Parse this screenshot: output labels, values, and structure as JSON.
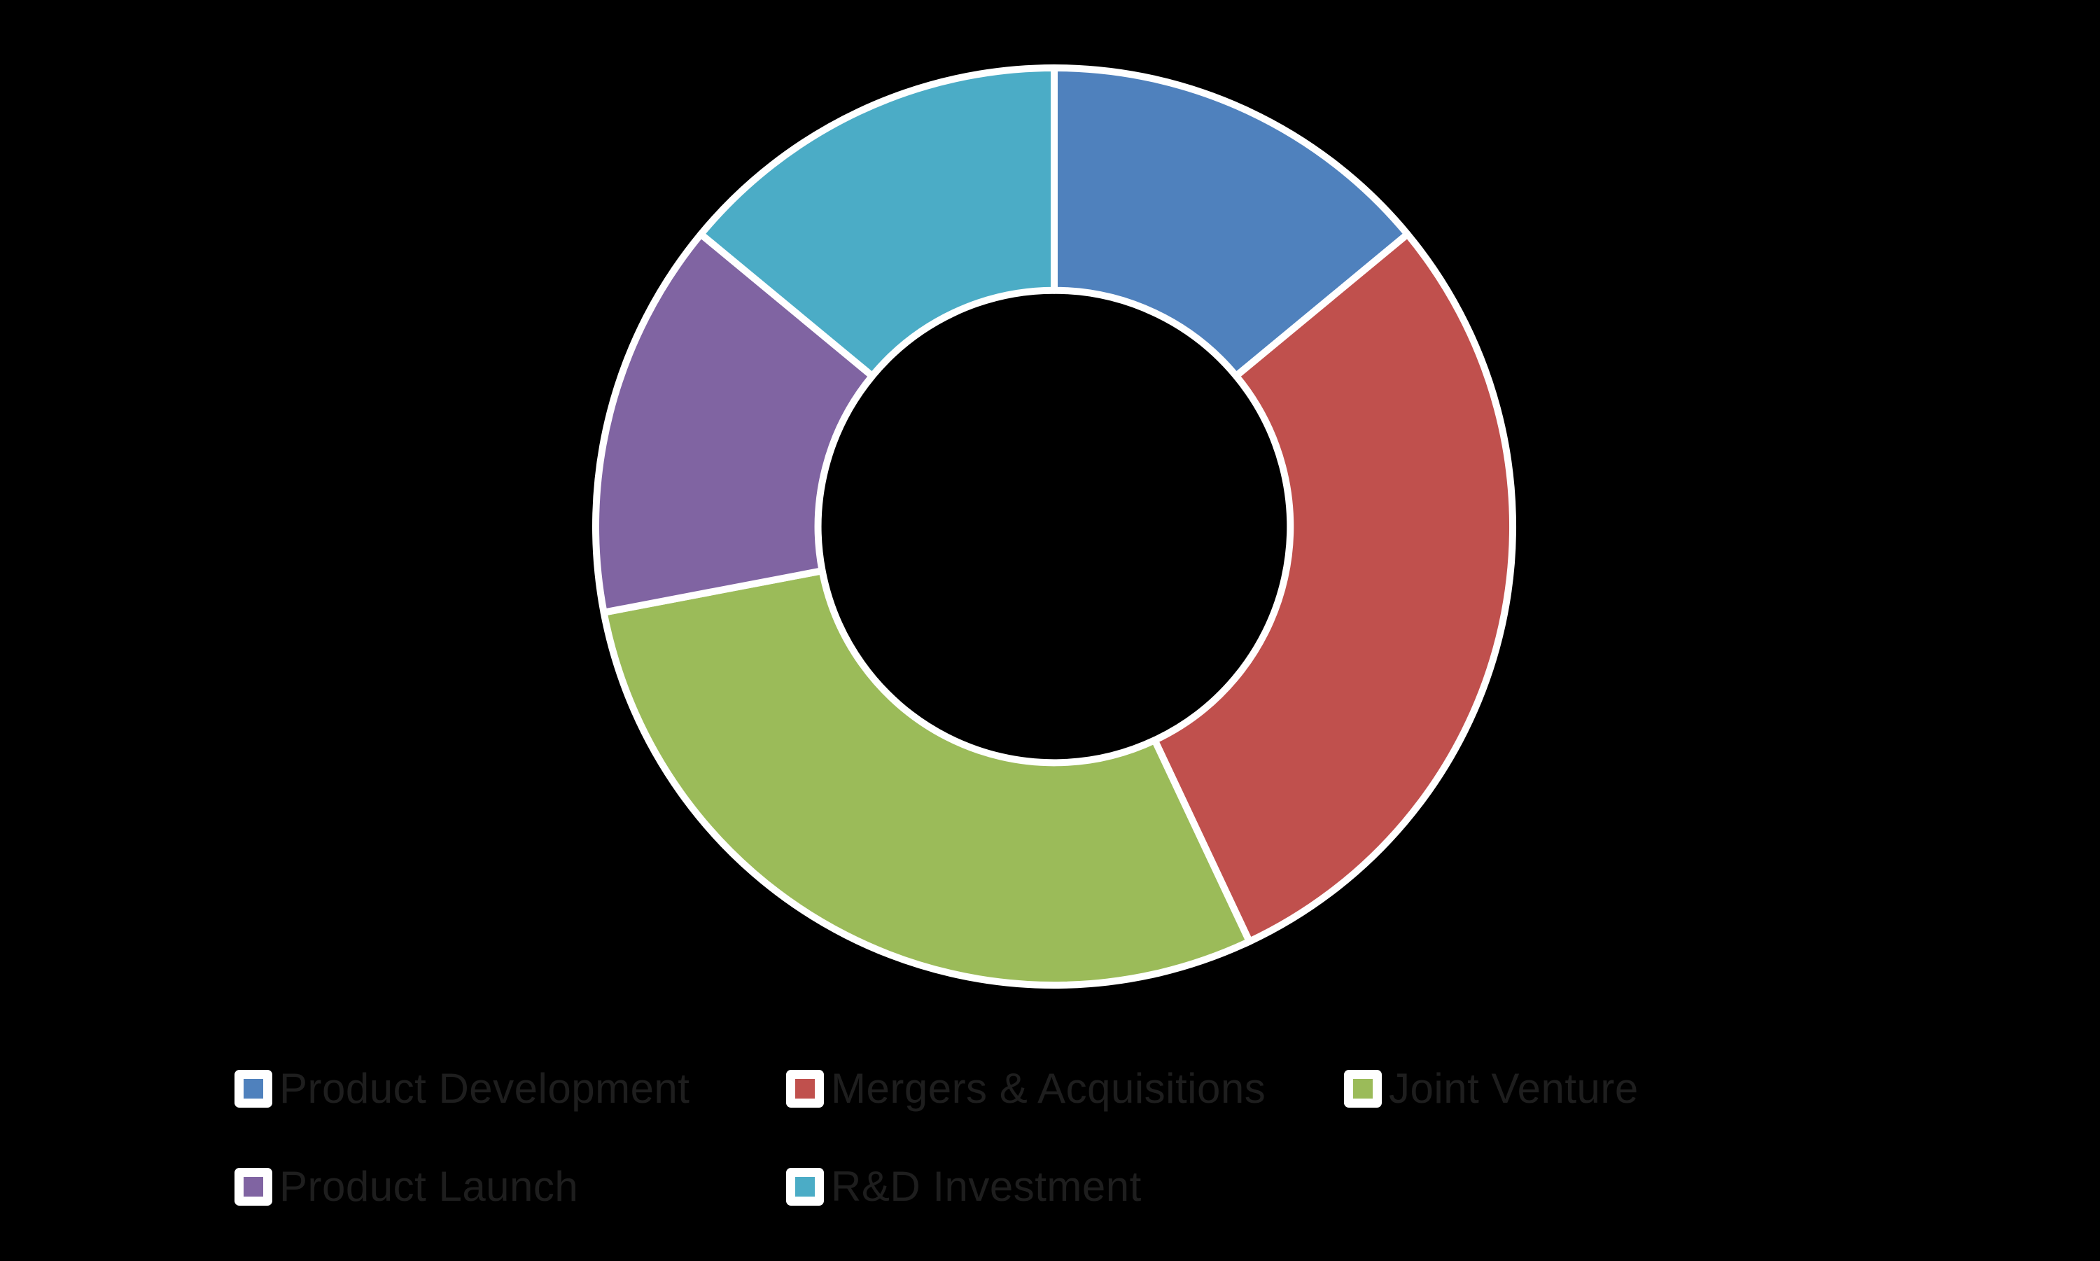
{
  "background_color": "#000000",
  "chart_data": {
    "type": "pie",
    "subtype": "donut",
    "title": "",
    "labels": [
      "Product Development",
      "Mergers & Acquisitions",
      "Joint Venture",
      "Product Launch",
      "R&D Investment"
    ],
    "values": [
      14,
      29,
      29,
      14,
      14
    ],
    "value_unit": "percent (estimated from segment angles; no data labels shown)",
    "colors": [
      "#4F81BD",
      "#C0504D",
      "#9BBB59",
      "#8064A2",
      "#4BACC6"
    ],
    "start_angle_deg": 0,
    "direction": "clockwise",
    "donut_hole_ratio": 0.515,
    "segment_border_color": "#FFFFFF",
    "legend_position": "bottom",
    "legend_text_color": "#1E1E1E",
    "legend_rows": [
      [
        "Product Development",
        "Mergers & Acquisitions",
        "Joint Venture"
      ],
      [
        "Product Launch",
        "R&D Investment"
      ]
    ]
  }
}
